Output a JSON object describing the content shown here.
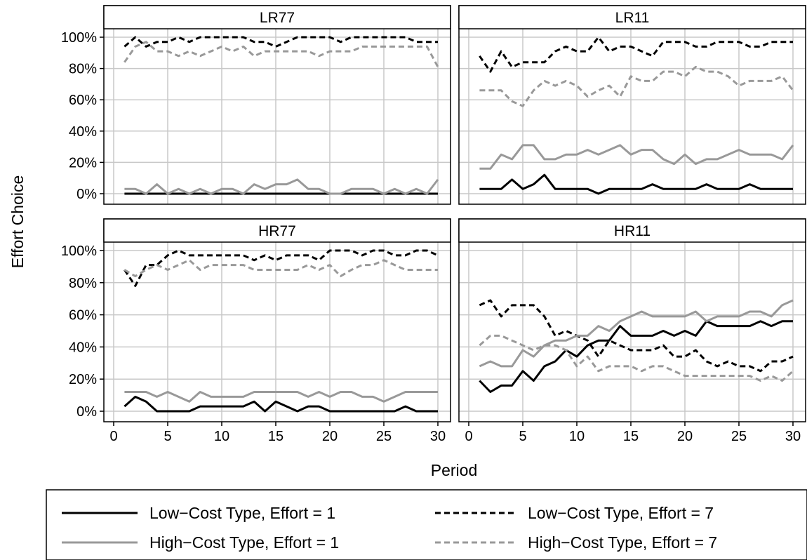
{
  "figure": {
    "ylabel": "Effort Choice",
    "xlabel": "Period"
  },
  "legend": {
    "placement": "bottom",
    "entries": [
      {
        "label": "Low−Cost Type, Effort = 1",
        "color": "#000000",
        "dash": "solid"
      },
      {
        "label": "Low−Cost Type, Effort = 7",
        "color": "#000000",
        "dash": "dashed"
      },
      {
        "label": "High−Cost Type, Effort = 1",
        "color": "#999999",
        "dash": "solid"
      },
      {
        "label": "High−Cost Type, Effort = 7",
        "color": "#999999",
        "dash": "dashed"
      }
    ]
  },
  "chart_data": [
    {
      "type": "line",
      "title": "LR77",
      "x": [
        1,
        2,
        3,
        4,
        5,
        6,
        7,
        8,
        9,
        10,
        11,
        12,
        13,
        14,
        15,
        16,
        17,
        18,
        19,
        20,
        21,
        22,
        23,
        24,
        25,
        26,
        27,
        28,
        29,
        30
      ],
      "xlim": [
        0,
        30
      ],
      "xticks": [
        "0",
        "5",
        "10",
        "15",
        "20",
        "25",
        "30"
      ],
      "ylim": [
        0,
        100
      ],
      "yticks": [
        "0%",
        "20%",
        "40%",
        "60%",
        "80%",
        "100%"
      ],
      "grid": true,
      "series": [
        {
          "name": "Low−Cost Type, Effort = 1",
          "values": [
            0,
            0,
            0,
            0,
            0,
            0,
            0,
            0,
            0,
            0,
            0,
            0,
            0,
            0,
            0,
            0,
            0,
            0,
            0,
            0,
            0,
            0,
            0,
            0,
            0,
            0,
            0,
            0,
            0,
            0
          ]
        },
        {
          "name": "Low−Cost Type, Effort = 7",
          "values": [
            94,
            100,
            94,
            97,
            97,
            100,
            97,
            100,
            100,
            100,
            100,
            100,
            97,
            97,
            94,
            97,
            100,
            100,
            100,
            100,
            97,
            100,
            100,
            100,
            100,
            100,
            100,
            97,
            97,
            97
          ]
        },
        {
          "name": "High−Cost Type, Effort = 1",
          "values": [
            3,
            3,
            0,
            6,
            0,
            3,
            0,
            3,
            0,
            3,
            3,
            0,
            6,
            3,
            6,
            6,
            9,
            3,
            3,
            0,
            0,
            3,
            3,
            3,
            0,
            3,
            0,
            3,
            0,
            9
          ]
        },
        {
          "name": "High−Cost Type, Effort = 7",
          "values": [
            84,
            94,
            97,
            91,
            91,
            88,
            91,
            88,
            91,
            94,
            91,
            94,
            88,
            91,
            91,
            91,
            91,
            91,
            88,
            91,
            91,
            91,
            94,
            94,
            94,
            94,
            94,
            94,
            94,
            81
          ]
        }
      ]
    },
    {
      "type": "line",
      "title": "LR11",
      "x": [
        1,
        2,
        3,
        4,
        5,
        6,
        7,
        8,
        9,
        10,
        11,
        12,
        13,
        14,
        15,
        16,
        17,
        18,
        19,
        20,
        21,
        22,
        23,
        24,
        25,
        26,
        27,
        28,
        29,
        30
      ],
      "xlim": [
        0,
        30
      ],
      "xticks": [
        "0",
        "5",
        "10",
        "15",
        "20",
        "25",
        "30"
      ],
      "ylim": [
        0,
        100
      ],
      "yticks": [
        "0%",
        "20%",
        "40%",
        "60%",
        "80%",
        "100%"
      ],
      "grid": true,
      "series": [
        {
          "name": "Low−Cost Type, Effort = 1",
          "values": [
            3,
            3,
            3,
            9,
            3,
            6,
            12,
            3,
            3,
            3,
            3,
            0,
            3,
            3,
            3,
            3,
            6,
            3,
            3,
            3,
            3,
            6,
            3,
            3,
            3,
            6,
            3,
            3,
            3,
            3
          ]
        },
        {
          "name": "Low−Cost Type, Effort = 7",
          "values": [
            88,
            78,
            91,
            81,
            84,
            84,
            84,
            91,
            94,
            91,
            91,
            100,
            91,
            94,
            94,
            91,
            88,
            97,
            97,
            97,
            94,
            94,
            97,
            97,
            97,
            94,
            94,
            97,
            97,
            97
          ]
        },
        {
          "name": "High−Cost Type, Effort = 1",
          "values": [
            16,
            16,
            25,
            22,
            31,
            31,
            22,
            22,
            25,
            25,
            28,
            25,
            28,
            31,
            25,
            28,
            28,
            22,
            19,
            25,
            19,
            22,
            22,
            25,
            28,
            25,
            25,
            25,
            22,
            31
          ]
        },
        {
          "name": "High−Cost Type, Effort = 7",
          "values": [
            66,
            66,
            66,
            59,
            56,
            66,
            72,
            69,
            72,
            69,
            62,
            66,
            69,
            62,
            75,
            72,
            72,
            78,
            78,
            75,
            81,
            78,
            78,
            75,
            69,
            72,
            72,
            72,
            75,
            66
          ]
        }
      ]
    },
    {
      "type": "line",
      "title": "HR77",
      "x": [
        1,
        2,
        3,
        4,
        5,
        6,
        7,
        8,
        9,
        10,
        11,
        12,
        13,
        14,
        15,
        16,
        17,
        18,
        19,
        20,
        21,
        22,
        23,
        24,
        25,
        26,
        27,
        28,
        29,
        30
      ],
      "xlim": [
        0,
        30
      ],
      "xticks": [
        "0",
        "5",
        "10",
        "15",
        "20",
        "25",
        "30"
      ],
      "ylim": [
        0,
        100
      ],
      "yticks": [
        "0%",
        "20%",
        "40%",
        "60%",
        "80%",
        "100%"
      ],
      "grid": true,
      "series": [
        {
          "name": "Low−Cost Type, Effort = 1",
          "values": [
            3,
            9,
            6,
            0,
            0,
            0,
            0,
            3,
            3,
            3,
            3,
            3,
            6,
            0,
            6,
            3,
            0,
            3,
            3,
            0,
            0,
            0,
            0,
            0,
            0,
            0,
            3,
            0,
            0,
            0
          ]
        },
        {
          "name": "Low−Cost Type, Effort = 7",
          "values": [
            88,
            78,
            91,
            91,
            97,
            100,
            97,
            97,
            97,
            97,
            97,
            97,
            94,
            97,
            94,
            97,
            97,
            97,
            94,
            100,
            100,
            100,
            97,
            100,
            100,
            97,
            97,
            100,
            100,
            97
          ]
        },
        {
          "name": "High−Cost Type, Effort = 1",
          "values": [
            12,
            12,
            12,
            9,
            12,
            9,
            6,
            12,
            9,
            9,
            9,
            9,
            12,
            12,
            12,
            12,
            12,
            9,
            12,
            9,
            12,
            12,
            9,
            9,
            6,
            9,
            12,
            12,
            12,
            12
          ]
        },
        {
          "name": "High−Cost Type, Effort = 7",
          "values": [
            88,
            84,
            88,
            91,
            88,
            91,
            94,
            88,
            91,
            91,
            91,
            91,
            88,
            88,
            88,
            88,
            88,
            91,
            88,
            91,
            84,
            88,
            91,
            91,
            94,
            91,
            88,
            88,
            88,
            88
          ]
        }
      ]
    },
    {
      "type": "line",
      "title": "HR11",
      "x": [
        1,
        2,
        3,
        4,
        5,
        6,
        7,
        8,
        9,
        10,
        11,
        12,
        13,
        14,
        15,
        16,
        17,
        18,
        19,
        20,
        21,
        22,
        23,
        24,
        25,
        26,
        27,
        28,
        29,
        30
      ],
      "xlim": [
        0,
        30
      ],
      "xticks": [
        "0",
        "5",
        "10",
        "15",
        "20",
        "25",
        "30"
      ],
      "ylim": [
        0,
        100
      ],
      "yticks": [
        "0%",
        "20%",
        "40%",
        "60%",
        "80%",
        "100%"
      ],
      "grid": true,
      "series": [
        {
          "name": "Low−Cost Type, Effort = 1",
          "values": [
            19,
            12,
            16,
            16,
            25,
            19,
            28,
            31,
            38,
            34,
            41,
            44,
            44,
            53,
            47,
            47,
            47,
            50,
            47,
            50,
            47,
            56,
            53,
            53,
            53,
            53,
            56,
            53,
            56,
            56
          ]
        },
        {
          "name": "Low−Cost Type, Effort = 7",
          "values": [
            66,
            69,
            59,
            66,
            66,
            66,
            59,
            47,
            50,
            47,
            44,
            34,
            44,
            41,
            38,
            38,
            38,
            41,
            34,
            34,
            38,
            31,
            28,
            31,
            28,
            28,
            25,
            31,
            31,
            34
          ]
        },
        {
          "name": "High−Cost Type, Effort = 1",
          "values": [
            28,
            31,
            28,
            28,
            38,
            34,
            41,
            44,
            44,
            47,
            47,
            53,
            50,
            56,
            59,
            62,
            59,
            59,
            59,
            59,
            62,
            56,
            59,
            59,
            59,
            62,
            62,
            59,
            66,
            69
          ]
        },
        {
          "name": "High−Cost Type, Effort = 7",
          "values": [
            41,
            47,
            47,
            44,
            41,
            38,
            41,
            41,
            38,
            28,
            34,
            25,
            28,
            28,
            28,
            25,
            28,
            28,
            25,
            22,
            22,
            22,
            22,
            22,
            22,
            22,
            19,
            22,
            19,
            25
          ]
        }
      ]
    }
  ]
}
